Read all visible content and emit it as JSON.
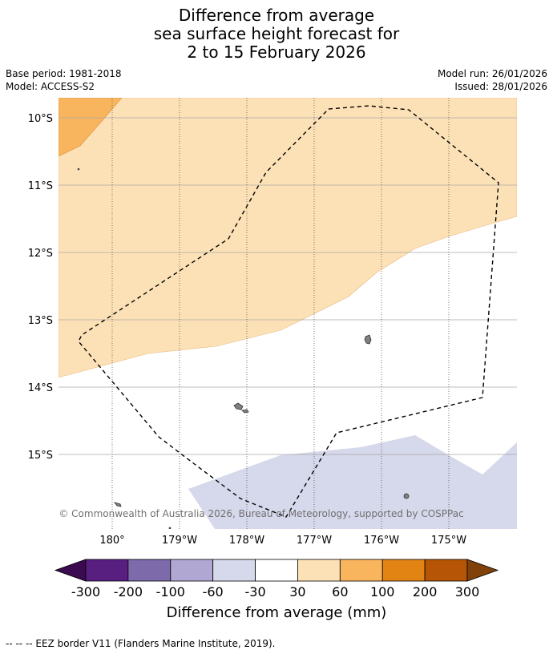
{
  "title": {
    "line1": "Difference from average",
    "line2": "sea surface height forecast for",
    "line3": "2 to 15 February 2026"
  },
  "meta": {
    "base_period": "Base period: 1981-2018",
    "model": "Model: ACCESS-S2",
    "model_run": "Model run: 26/01/2026",
    "issued": "Issued: 28/01/2026"
  },
  "map": {
    "lat_labels": [
      "10°S",
      "11°S",
      "12°S",
      "13°S",
      "14°S",
      "15°S"
    ],
    "lon_labels": [
      "180°",
      "179°W",
      "178°W",
      "177°W",
      "176°W",
      "175°W"
    ],
    "copyright": "© Commonwealth of Australia 2026, Bureau of Meteorology, supported by COSPPac"
  },
  "colorbar": {
    "tick_labels": [
      "-300",
      "-200",
      "-100",
      "-60",
      "-30",
      "30",
      "60",
      "100",
      "200",
      "300"
    ],
    "colors": [
      "#581f81",
      "#7d6aaa",
      "#b0a8d2",
      "#d6d8eb",
      "#ffffff",
      "#fde1b6",
      "#f9b55e",
      "#e18414",
      "#b65505"
    ],
    "extend_low_color": "#3c0a50",
    "extend_high_color": "#80420a",
    "label": "Difference from average (mm)"
  },
  "colors": {
    "light_orange": "#fde1b6",
    "mid_orange": "#f9b55e",
    "light_purple": "#d6d8eb",
    "land": "#808080"
  },
  "footnote": "--  --  -- EEZ border V11 (Flanders Marine Institute, 2019)."
}
